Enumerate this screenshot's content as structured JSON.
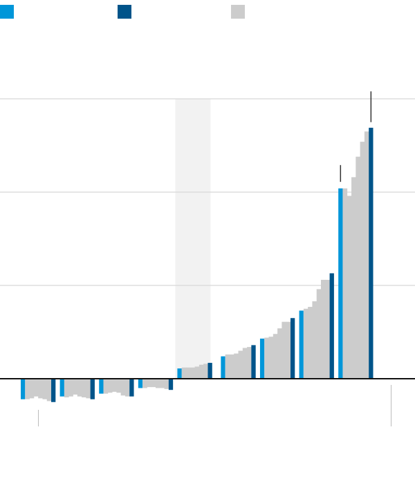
{
  "colors": {
    "first": "#0096d9",
    "last": "#00548a",
    "other": "#cccccc",
    "band": "#f2f2f2",
    "grid": "#dddddd",
    "baseline": "#111111"
  },
  "legend": [
    {
      "color": "#0096d9"
    },
    {
      "color": "#00548a"
    },
    {
      "color": "#cccccc"
    }
  ],
  "chart_data": {
    "type": "bar",
    "title": "",
    "xlabel": "",
    "ylabel": "",
    "ylim": [
      -0.5,
      3.0
    ],
    "gridlines": [
      1,
      2,
      3
    ],
    "grid": true,
    "legend_position": "top-left",
    "shaded_gap_between_groups": [
      4,
      5
    ],
    "groups": [
      {
        "values": [
          -0.22,
          -0.22,
          -0.21,
          -0.19,
          -0.21,
          -0.22,
          -0.24,
          -0.25
        ]
      },
      {
        "values": [
          -0.19,
          -0.2,
          -0.19,
          -0.17,
          -0.19,
          -0.2,
          -0.21,
          -0.22
        ]
      },
      {
        "values": [
          -0.16,
          -0.16,
          -0.15,
          -0.14,
          -0.15,
          -0.18,
          -0.19,
          -0.19
        ]
      },
      {
        "values": [
          -0.1,
          -0.1,
          -0.09,
          -0.09,
          -0.1,
          -0.1,
          -0.11,
          -0.12
        ]
      },
      {
        "values": [
          0.11,
          0.12,
          0.12,
          0.12,
          0.13,
          0.15,
          0.16,
          0.17
        ]
      },
      {
        "values": [
          0.24,
          0.26,
          0.26,
          0.27,
          0.3,
          0.33,
          0.34,
          0.36
        ]
      },
      {
        "values": [
          0.43,
          0.44,
          0.45,
          0.48,
          0.54,
          0.61,
          0.61,
          0.65
        ]
      },
      {
        "values": [
          0.73,
          0.75,
          0.77,
          0.83,
          0.96,
          1.06,
          1.06,
          1.13
        ]
      },
      {
        "values": [
          2.04,
          2.04,
          1.96,
          2.16,
          2.38,
          2.54,
          2.65,
          2.69
        ],
        "error_bars": [
          {
            "index": 0,
            "low": 2.11,
            "high": 2.29
          },
          {
            "index": 7,
            "low": 2.75,
            "high": 3.08
          }
        ]
      }
    ]
  }
}
